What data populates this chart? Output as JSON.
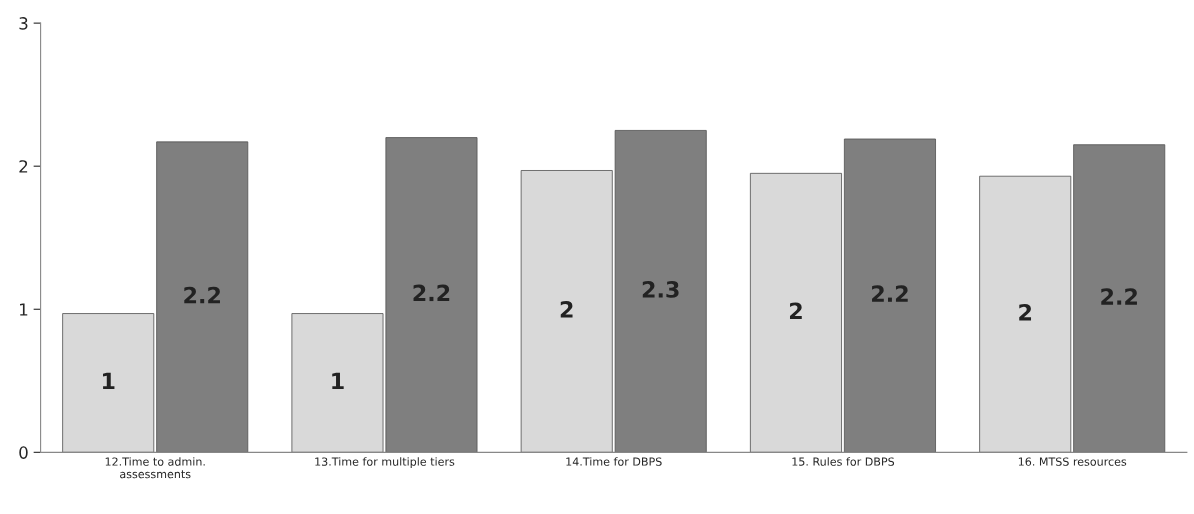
{
  "chart_data": {
    "type": "bar",
    "categories": [
      "12.Time to admin.\nassessments",
      "13.Time for multiple tiers",
      "14.Time for DBPS",
      "15. Rules for DBPS",
      "16. MTSS resources"
    ],
    "series": [
      {
        "color": "#d9d9d9",
        "values": [
          0.97,
          0.97,
          1.97,
          1.95,
          1.93
        ],
        "value_labels": [
          "1",
          "1",
          "2",
          "2",
          "2"
        ]
      },
      {
        "color": "#7f7f7f",
        "values": [
          2.17,
          2.2,
          2.25,
          2.19,
          2.15
        ],
        "value_labels": [
          "2.2",
          "2.2",
          "2.3",
          "2.2",
          "2.2"
        ]
      }
    ],
    "ylim": [
      0,
      3
    ],
    "yticks": [
      0,
      1,
      2,
      3
    ],
    "grid": false,
    "legend": false
  }
}
